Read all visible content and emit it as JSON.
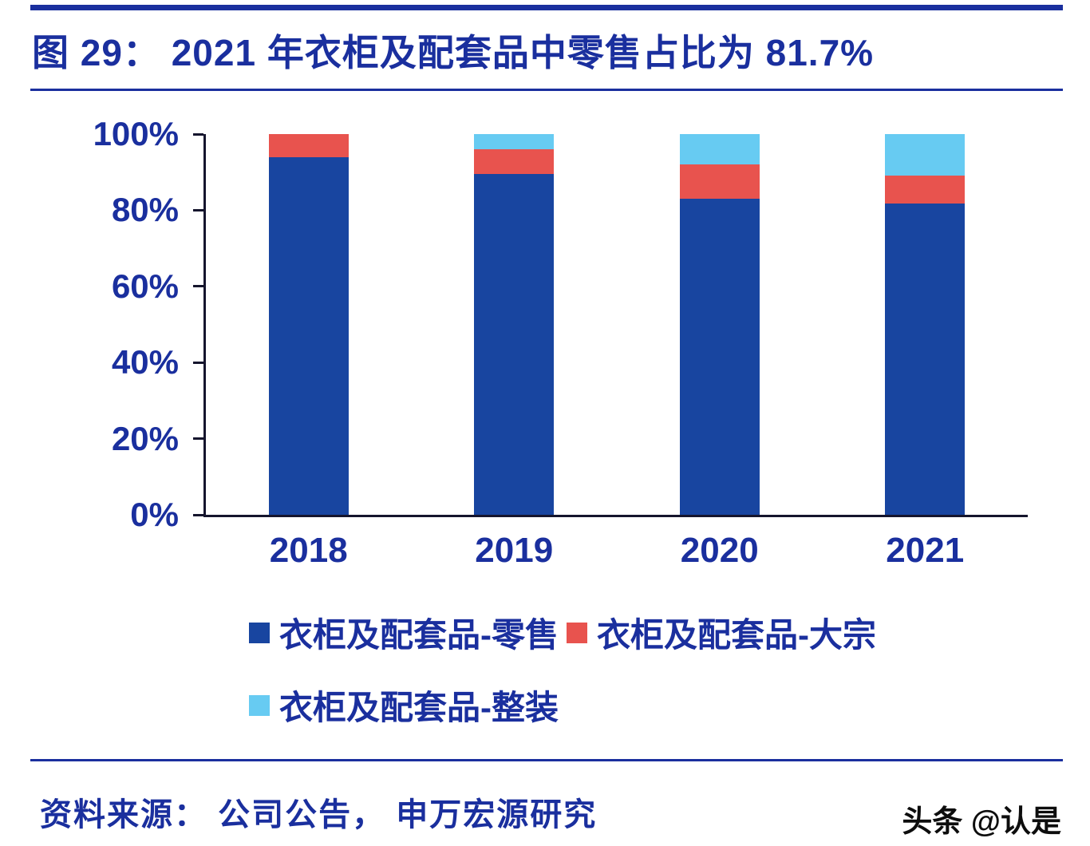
{
  "title": "图 29： 2021 年衣柜及配套品中零售占比为 81.7%",
  "source": "资料来源： 公司公告， 申万宏源研究",
  "watermark": "头条 @认是",
  "colors": {
    "accent": "#1a2f9e",
    "retail": "#1845a0",
    "bulk": "#e8534e",
    "whole": "#67cbf2",
    "axis": "#15152d"
  },
  "chart_data": {
    "type": "bar",
    "stacked": true,
    "title": "2021 年衣柜及配套品中零售占比为 81.7%",
    "categories": [
      "2018",
      "2019",
      "2020",
      "2021"
    ],
    "series": [
      {
        "name": "衣柜及配套品-零售",
        "color_key": "retail",
        "values": [
          94,
          89.5,
          83,
          81.7
        ]
      },
      {
        "name": "衣柜及配套品-大宗",
        "color_key": "bulk",
        "values": [
          6,
          6.5,
          9,
          7.3
        ]
      },
      {
        "name": "衣柜及配套品-整装",
        "color_key": "whole",
        "values": [
          0,
          4,
          8,
          11
        ]
      }
    ],
    "xlabel": "",
    "ylabel": "",
    "ylim": [
      0,
      100
    ],
    "yticks": [
      0,
      20,
      40,
      60,
      80,
      100
    ],
    "ytick_suffix": "%",
    "grid": false,
    "legend_position": "bottom"
  }
}
